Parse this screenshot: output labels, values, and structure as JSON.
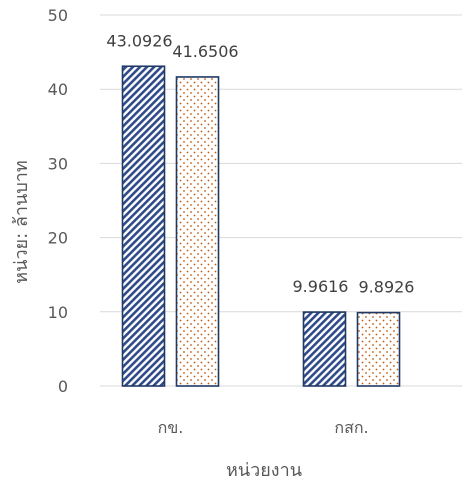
{
  "chart_data": {
    "type": "bar",
    "categories": [
      "กข.",
      "กสก."
    ],
    "series": [
      {
        "values": [
          43.0926,
          9.9616
        ],
        "pattern": "diagonal-hatch",
        "color": "#2f4b8a"
      },
      {
        "values": [
          41.6506,
          9.8926
        ],
        "pattern": "dots",
        "color": "#c55a11"
      }
    ],
    "data_labels": [
      [
        "43.0926",
        "9.9616"
      ],
      [
        "41.6506",
        "9.8926"
      ]
    ],
    "xlabel": "หน่วยงาน",
    "ylabel": "หน่วย: ล้านบาท",
    "ylim": [
      0,
      50
    ],
    "yticks": [
      0,
      10,
      20,
      30,
      40,
      50
    ],
    "grid": true,
    "legend": "none",
    "gridline_color": "#d9d9d9",
    "bar_border_color": "#1f3864"
  }
}
